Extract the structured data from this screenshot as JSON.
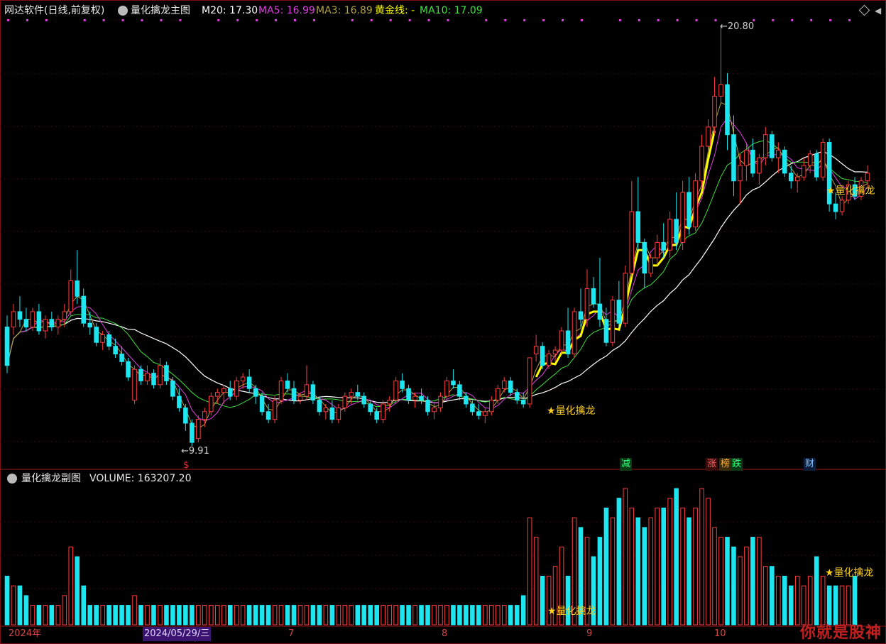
{
  "header": {
    "app": "网达软件(日线,前复权)",
    "main_chart": "量化擒龙主图",
    "m20": "M20: 17.30",
    "ma5": "MA5: 16.99",
    "ma3": "MA3: 16.89",
    "gold": "黄金线: -",
    "ma10": "MA10: 17.09",
    "colors": {
      "m20": "#ffffff",
      "ma5": "#e040e0",
      "ma3": "#b0a040",
      "gold": "#ffff00",
      "ma10": "#40e040"
    }
  },
  "sub": {
    "title": "量化擒龙副图",
    "volume": "VOLUME: 163207.20"
  },
  "x_axis": {
    "labels": [
      {
        "text": "2024年",
        "pos": 0
      },
      {
        "text": "2024/05/29/三",
        "pos": 1
      },
      {
        "text": "7",
        "pos": 2
      },
      {
        "text": "8",
        "pos": 3
      },
      {
        "text": "9",
        "pos": 4
      },
      {
        "text": "10",
        "pos": 5
      }
    ]
  },
  "annotations": {
    "low": "9.91",
    "high": "20.80",
    "signal1": "量化擒龙",
    "signal2": "量化擒龙",
    "vol_signal1": "量化擒龙",
    "vol_signal2": "量化擒龙",
    "s_marker": "$",
    "tags": [
      "减",
      "涨",
      "榜",
      "跌",
      "财"
    ]
  },
  "watermark": "你就是股神",
  "chart_data": {
    "type": "candlestick",
    "price_range": [
      9.5,
      21.0
    ],
    "high": 20.8,
    "low": 9.91,
    "candles": [
      [
        13.0,
        13.3,
        11.8,
        12.0
      ],
      [
        13.0,
        13.6,
        12.8,
        13.4
      ],
      [
        13.4,
        13.8,
        13.0,
        13.2
      ],
      [
        13.2,
        13.5,
        12.9,
        13.0
      ],
      [
        13.0,
        13.5,
        12.9,
        13.4
      ],
      [
        13.4,
        13.6,
        12.8,
        12.9
      ],
      [
        12.9,
        13.3,
        12.7,
        13.2
      ],
      [
        13.2,
        13.4,
        12.9,
        13.0
      ],
      [
        13.0,
        13.3,
        12.8,
        13.2
      ],
      [
        13.2,
        13.6,
        13.0,
        13.4
      ],
      [
        13.4,
        14.5,
        13.3,
        14.2
      ],
      [
        14.2,
        15.0,
        13.6,
        13.8
      ],
      [
        13.8,
        14.0,
        13.0,
        13.1
      ],
      [
        13.1,
        13.4,
        12.8,
        13.0
      ],
      [
        13.0,
        13.1,
        12.5,
        12.6
      ],
      [
        12.6,
        12.9,
        12.4,
        12.8
      ],
      [
        12.8,
        12.9,
        12.4,
        12.5
      ],
      [
        12.5,
        12.7,
        12.2,
        12.3
      ],
      [
        12.3,
        12.5,
        12.0,
        12.1
      ],
      [
        12.1,
        12.2,
        11.6,
        11.7
      ],
      [
        11.1,
        12.0,
        11.0,
        11.9
      ],
      [
        11.9,
        12.0,
        11.5,
        11.6
      ],
      [
        11.6,
        12.0,
        11.5,
        11.8
      ],
      [
        11.8,
        11.9,
        11.4,
        11.5
      ],
      [
        11.5,
        12.2,
        11.4,
        12.0
      ],
      [
        12.0,
        12.1,
        11.5,
        11.6
      ],
      [
        11.6,
        11.7,
        11.1,
        11.2
      ],
      [
        11.2,
        11.4,
        10.8,
        10.9
      ],
      [
        10.9,
        11.0,
        10.3,
        10.5
      ],
      [
        10.5,
        10.6,
        9.91,
        10.0
      ],
      [
        10.1,
        10.7,
        10.0,
        10.6
      ],
      [
        10.6,
        10.9,
        10.4,
        10.8
      ],
      [
        10.8,
        11.3,
        10.7,
        11.2
      ],
      [
        11.2,
        11.4,
        11.0,
        11.3
      ],
      [
        11.3,
        11.5,
        11.0,
        11.4
      ],
      [
        11.4,
        11.6,
        11.1,
        11.2
      ],
      [
        11.2,
        11.7,
        11.1,
        11.6
      ],
      [
        11.6,
        11.8,
        11.4,
        11.7
      ],
      [
        11.7,
        11.9,
        11.3,
        11.4
      ],
      [
        11.4,
        11.5,
        11.0,
        11.2
      ],
      [
        11.2,
        11.3,
        10.7,
        10.8
      ],
      [
        10.8,
        11.0,
        10.5,
        10.6
      ],
      [
        10.6,
        11.2,
        10.5,
        11.1
      ],
      [
        11.1,
        11.7,
        11.0,
        11.6
      ],
      [
        11.6,
        11.8,
        11.3,
        11.4
      ],
      [
        11.4,
        11.6,
        11.0,
        11.1
      ],
      [
        11.1,
        11.3,
        11.0,
        11.2
      ],
      [
        11.2,
        12.0,
        11.1,
        11.5
      ],
      [
        11.5,
        11.6,
        11.0,
        11.1
      ],
      [
        11.1,
        11.2,
        10.7,
        10.8
      ],
      [
        10.8,
        11.0,
        10.6,
        10.9
      ],
      [
        10.9,
        11.1,
        10.5,
        10.6
      ],
      [
        10.6,
        11.0,
        10.5,
        10.9
      ],
      [
        10.9,
        11.3,
        10.8,
        11.2
      ],
      [
        11.2,
        11.4,
        11.0,
        11.3
      ],
      [
        11.3,
        11.5,
        11.1,
        11.2
      ],
      [
        11.2,
        11.3,
        10.9,
        11.0
      ],
      [
        11.0,
        11.1,
        10.7,
        10.8
      ],
      [
        10.8,
        10.9,
        10.5,
        10.6
      ],
      [
        10.6,
        11.1,
        10.5,
        11.0
      ],
      [
        11.0,
        11.2,
        10.8,
        11.1
      ],
      [
        11.1,
        11.7,
        11.0,
        11.6
      ],
      [
        11.6,
        11.8,
        11.3,
        11.4
      ],
      [
        11.4,
        11.5,
        11.0,
        11.1
      ],
      [
        11.1,
        11.3,
        10.9,
        11.2
      ],
      [
        11.2,
        11.4,
        11.0,
        11.1
      ],
      [
        11.1,
        11.2,
        10.7,
        10.8
      ],
      [
        10.8,
        11.0,
        10.6,
        10.9
      ],
      [
        10.9,
        11.3,
        10.8,
        11.2
      ],
      [
        11.2,
        11.7,
        11.1,
        11.6
      ],
      [
        11.6,
        11.9,
        11.4,
        11.5
      ],
      [
        11.5,
        11.6,
        11.1,
        11.2
      ],
      [
        11.2,
        11.3,
        10.9,
        11.0
      ],
      [
        11.0,
        11.1,
        10.7,
        10.8
      ],
      [
        10.8,
        11.0,
        10.6,
        10.7
      ],
      [
        10.7,
        10.9,
        10.5,
        10.8
      ],
      [
        10.8,
        11.2,
        10.7,
        11.1
      ],
      [
        11.1,
        11.5,
        11.0,
        11.4
      ],
      [
        11.4,
        11.7,
        11.3,
        11.6
      ],
      [
        11.6,
        11.7,
        11.2,
        11.3
      ],
      [
        11.3,
        11.4,
        11.0,
        11.1
      ],
      [
        11.1,
        11.3,
        10.9,
        11.0
      ],
      [
        11.0,
        12.2,
        10.9,
        12.2
      ],
      [
        12.3,
        12.8,
        12.1,
        12.5
      ],
      [
        12.5,
        12.6,
        11.9,
        12.0
      ],
      [
        12.0,
        12.4,
        11.9,
        12.3
      ],
      [
        12.3,
        12.5,
        12.1,
        12.4
      ],
      [
        12.4,
        13.0,
        12.3,
        12.9
      ],
      [
        12.9,
        13.5,
        12.2,
        12.3
      ],
      [
        12.3,
        13.5,
        12.2,
        13.4
      ],
      [
        13.4,
        14.0,
        13.0,
        13.2
      ],
      [
        13.2,
        14.5,
        13.0,
        14.0
      ],
      [
        14.0,
        14.3,
        13.5,
        13.6
      ],
      [
        13.6,
        14.8,
        13.0,
        13.2
      ],
      [
        13.2,
        13.5,
        12.5,
        12.6
      ],
      [
        12.6,
        13.8,
        12.5,
        13.7
      ],
      [
        13.7,
        14.2,
        13.0,
        13.1
      ],
      [
        13.1,
        14.6,
        13.0,
        14.4
      ],
      [
        14.4,
        16.8,
        14.3,
        16.0
      ],
      [
        16.0,
        16.9,
        15.0,
        15.2
      ],
      [
        15.2,
        15.3,
        14.0,
        14.4
      ],
      [
        14.4,
        14.9,
        14.3,
        14.8
      ],
      [
        14.8,
        15.4,
        14.6,
        15.2
      ],
      [
        15.2,
        15.7,
        14.8,
        15.0
      ],
      [
        15.0,
        16.0,
        14.8,
        15.8
      ],
      [
        15.8,
        16.5,
        15.0,
        15.2
      ],
      [
        15.2,
        16.8,
        15.0,
        16.5
      ],
      [
        16.5,
        16.9,
        15.4,
        15.6
      ],
      [
        15.6,
        17.0,
        15.5,
        16.8
      ],
      [
        16.8,
        18.0,
        16.6,
        17.7
      ],
      [
        17.7,
        18.4,
        17.5,
        18.2
      ],
      [
        18.2,
        19.5,
        18.0,
        19.0
      ],
      [
        19.0,
        20.8,
        18.8,
        19.3
      ],
      [
        19.3,
        19.6,
        17.6,
        18.0
      ],
      [
        18.0,
        18.5,
        16.4,
        16.8
      ],
      [
        16.8,
        17.5,
        16.2,
        17.2
      ],
      [
        17.2,
        17.8,
        16.8,
        17.6
      ],
      [
        17.6,
        17.9,
        16.9,
        17.0
      ],
      [
        17.0,
        17.5,
        16.7,
        17.4
      ],
      [
        17.4,
        18.2,
        17.2,
        18.0
      ],
      [
        18.0,
        18.1,
        17.3,
        17.4
      ],
      [
        17.4,
        17.8,
        17.0,
        17.6
      ],
      [
        17.6,
        17.7,
        16.9,
        17.0
      ],
      [
        17.0,
        17.2,
        16.6,
        16.8
      ],
      [
        16.8,
        17.0,
        16.5,
        16.9
      ],
      [
        16.9,
        17.4,
        16.8,
        17.2
      ],
      [
        17.2,
        17.6,
        17.0,
        17.5
      ],
      [
        17.5,
        17.6,
        16.8,
        16.9
      ],
      [
        16.9,
        17.9,
        16.8,
        17.8
      ],
      [
        17.8,
        17.9,
        16.0,
        16.2
      ],
      [
        16.2,
        16.5,
        15.8,
        16.0
      ],
      [
        16.0,
        16.4,
        15.9,
        16.3
      ],
      [
        16.3,
        16.8,
        16.2,
        16.7
      ],
      [
        16.7,
        16.9,
        16.3,
        16.4
      ],
      [
        16.4,
        16.9,
        16.3,
        16.8
      ],
      [
        16.8,
        17.2,
        16.6,
        17.0
      ]
    ],
    "volume": [
      5,
      4,
      4,
      3,
      2,
      2,
      2,
      2,
      2,
      3,
      8,
      7,
      4,
      2,
      2,
      2,
      2,
      2,
      2,
      2,
      3,
      2,
      2,
      2,
      2,
      2,
      2,
      2,
      2,
      2,
      2,
      2,
      2,
      2,
      2,
      2,
      2,
      2,
      2,
      2,
      2,
      2,
      2,
      2,
      2,
      2,
      2,
      2,
      2,
      2,
      2,
      2,
      2,
      2,
      2,
      2,
      2,
      2,
      2,
      2,
      2,
      2,
      2,
      2,
      2,
      2,
      2,
      2,
      2,
      2,
      2,
      2,
      2,
      2,
      2,
      2,
      2,
      2,
      2,
      2,
      2,
      3,
      11,
      9,
      5,
      5,
      6,
      8,
      5,
      11,
      10,
      9,
      7,
      9,
      12,
      11,
      13,
      14,
      12,
      11,
      10,
      11,
      12,
      12,
      13,
      14,
      12,
      11,
      12,
      14,
      13,
      10,
      9,
      9,
      8,
      7,
      8,
      9,
      9,
      6,
      6,
      5,
      5,
      4,
      5,
      4,
      5,
      7,
      5,
      4,
      4,
      4,
      4,
      5
    ]
  }
}
